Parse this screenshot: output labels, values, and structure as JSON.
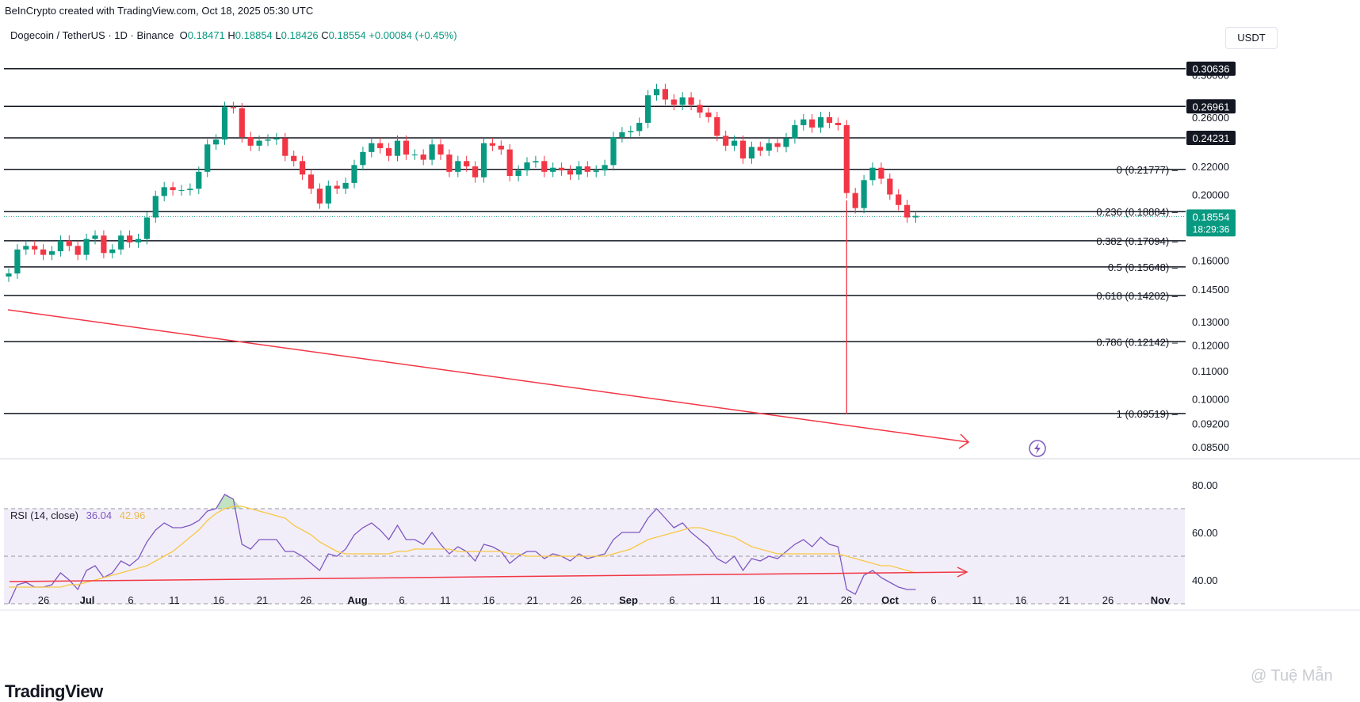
{
  "header": {
    "credit": "BeInCrypto created with TradingView.com, Oct 18, 2025 05:30 UTC",
    "symbol": "Dogecoin / TetherUS · 1D · Binance",
    "o_label": "O",
    "o_val": "0.18471",
    "h_label": "H",
    "h_val": "0.18854",
    "l_label": "L",
    "l_val": "0.18426",
    "c_label": "C",
    "c_val": "0.18554",
    "change": "+0.00084 (+0.45%)",
    "currency": "USDT"
  },
  "branding": {
    "logo": "TradingView",
    "watermark": "@ Tuệ Mẫn"
  },
  "colors": {
    "up": "#089981",
    "down": "#f23645",
    "rsi": "#7e57c2",
    "rsi_ma": "#f7c745",
    "trend": "#f23645",
    "grid": "#131722"
  },
  "chart_data": [
    {
      "type": "candlestick",
      "title": "Dogecoin / TetherUS · 1D · Binance",
      "ylim": [
        0.085,
        0.31
      ],
      "y_scale": "log",
      "y_ticks": [
        "0.30000",
        "0.26000",
        "0.22000",
        "0.20000",
        "0.16000",
        "0.14500",
        "0.13000",
        "0.12000",
        "0.11000",
        "0.10000",
        "0.09200",
        "0.08500"
      ],
      "x_ticks": [
        "26",
        "Jul",
        "6",
        "11",
        "16",
        "21",
        "26",
        "Aug",
        "6",
        "11",
        "16",
        "21",
        "26",
        "Sep",
        "6",
        "11",
        "16",
        "21",
        "26",
        "Oct",
        "6",
        "11",
        "16",
        "21",
        "26",
        "Nov"
      ],
      "horizontal_levels": [
        {
          "value": 0.30636,
          "label": "0.30636"
        },
        {
          "value": 0.26961,
          "label": "0.26961"
        },
        {
          "value": 0.24231,
          "label": "0.24231"
        }
      ],
      "fib_levels": [
        {
          "ratio": "0",
          "value": 0.21777,
          "label": "0 (0.21777)"
        },
        {
          "ratio": "0.236",
          "value": 0.18884,
          "label": "0.236 (0.18884)"
        },
        {
          "ratio": "0.382",
          "value": 0.17094,
          "label": "0.382 (0.17094)"
        },
        {
          "ratio": "0.5",
          "value": 0.15648,
          "label": "0.5 (0.15648)"
        },
        {
          "ratio": "0.618",
          "value": 0.14202,
          "label": "0.618 (0.14202)"
        },
        {
          "ratio": "0.786",
          "value": 0.12142,
          "label": "0.786 (0.12142)"
        },
        {
          "ratio": "1",
          "value": 0.09519,
          "label": "1 (0.09519)"
        }
      ],
      "last_price": {
        "value": 0.18554,
        "label": "0.18554",
        "countdown": "18:29:36"
      },
      "close_series": [
        0.153,
        0.166,
        0.168,
        0.166,
        0.163,
        0.165,
        0.171,
        0.168,
        0.163,
        0.172,
        0.174,
        0.164,
        0.166,
        0.174,
        0.17,
        0.172,
        0.185,
        0.199,
        0.205,
        0.203,
        0.203,
        0.204,
        0.216,
        0.237,
        0.241,
        0.269,
        0.268,
        0.243,
        0.236,
        0.24,
        0.241,
        0.242,
        0.228,
        0.224,
        0.214,
        0.204,
        0.194,
        0.206,
        0.204,
        0.208,
        0.221,
        0.231,
        0.238,
        0.234,
        0.228,
        0.24,
        0.229,
        0.229,
        0.225,
        0.237,
        0.229,
        0.216,
        0.224,
        0.22,
        0.212,
        0.238,
        0.236,
        0.233,
        0.213,
        0.217,
        0.223,
        0.224,
        0.216,
        0.219,
        0.217,
        0.214,
        0.22,
        0.216,
        0.217,
        0.221,
        0.243,
        0.247,
        0.248,
        0.255,
        0.28,
        0.286,
        0.276,
        0.271,
        0.278,
        0.271,
        0.264,
        0.26,
        0.244,
        0.236,
        0.24,
        0.226,
        0.235,
        0.232,
        0.238,
        0.235,
        0.242,
        0.253,
        0.258,
        0.251,
        0.26,
        0.255,
        0.253,
        0.201,
        0.191,
        0.21,
        0.219,
        0.211,
        0.2,
        0.193,
        0.185,
        0.186
      ]
    },
    {
      "type": "line",
      "title": "RSI (14, close)",
      "series": [
        {
          "name": "RSI",
          "last": "36.04",
          "values": [
            30,
            38,
            39,
            37,
            37,
            38,
            43,
            40,
            36,
            44,
            46,
            41,
            43,
            48,
            46,
            49,
            56,
            61,
            64,
            62,
            62,
            63,
            65,
            69,
            70,
            76,
            74,
            55,
            53,
            57,
            57,
            57,
            52,
            52,
            50,
            47,
            44,
            51,
            50,
            53,
            59,
            62,
            64,
            61,
            57,
            63,
            57,
            57,
            55,
            60,
            55,
            51,
            54,
            52,
            48,
            55,
            54,
            52,
            47,
            50,
            52,
            52,
            49,
            51,
            50,
            48,
            51,
            49,
            50,
            51,
            57,
            60,
            60,
            60,
            66,
            70,
            66,
            62,
            64,
            60,
            57,
            54,
            49,
            47,
            50,
            44,
            49,
            48,
            50,
            49,
            52,
            55,
            57,
            54,
            58,
            55,
            54,
            36,
            34,
            42,
            44,
            41,
            39,
            37,
            36,
            36
          ]
        },
        {
          "name": "RSI-based MA",
          "last": "42.96",
          "values": [
            37,
            37,
            37,
            37,
            37,
            37,
            37,
            38,
            38,
            39,
            40,
            41,
            42,
            43,
            44,
            45,
            46,
            48,
            50,
            52,
            55,
            58,
            61,
            65,
            68,
            70,
            71,
            71,
            70,
            69,
            68,
            67,
            66,
            63,
            61,
            59,
            56,
            54,
            52,
            51,
            51,
            51,
            51,
            51,
            51,
            52,
            52,
            53,
            53,
            53,
            53,
            53,
            52,
            52,
            52,
            52,
            52,
            52,
            51,
            51,
            50,
            50,
            50,
            50,
            50,
            50,
            50,
            50,
            50,
            50,
            51,
            52,
            53,
            55,
            57,
            58,
            59,
            60,
            61,
            62,
            62,
            61,
            60,
            59,
            58,
            56,
            54,
            53,
            52,
            51,
            51,
            51,
            51,
            51,
            51,
            51,
            51,
            50,
            49,
            48,
            47,
            46,
            46,
            45,
            44,
            43
          ]
        }
      ],
      "ylim": [
        28,
        88
      ],
      "y_ticks": [
        "80.00",
        "60.00",
        "40.00"
      ],
      "bands": [
        70,
        50,
        30
      ]
    }
  ]
}
